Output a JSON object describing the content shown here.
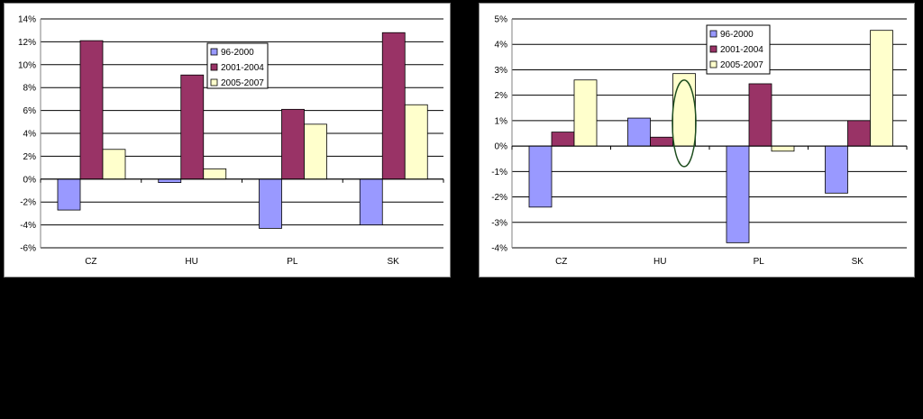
{
  "colors": {
    "s1": "#9999ff",
    "s2": "#993366",
    "s3": "#ffffcc",
    "grid": "#000000",
    "highlight_ellipse": "#1f4e1f"
  },
  "chart_data": [
    {
      "type": "bar",
      "categories": [
        "CZ",
        "HU",
        "PL",
        "SK"
      ],
      "series": [
        {
          "name": "96-2000",
          "values": [
            -2.7,
            -0.3,
            -4.3,
            -4.0
          ]
        },
        {
          "name": "2001-2004",
          "values": [
            12.1,
            9.1,
            6.1,
            12.8
          ]
        },
        {
          "name": "2005-2007",
          "values": [
            2.6,
            0.9,
            4.8,
            6.5
          ]
        }
      ],
      "title": "",
      "xlabel": "",
      "ylabel": "",
      "ylim": [
        -6,
        14
      ],
      "yticks": [
        -6,
        -4,
        -2,
        0,
        2,
        4,
        6,
        8,
        10,
        12,
        14
      ],
      "ytick_labels": [
        "-6%",
        "-4%",
        "-2%",
        "0%",
        "2%",
        "4%",
        "6%",
        "8%",
        "10%",
        "12%",
        "14%"
      ],
      "grid": true,
      "legend_position": "top-center"
    },
    {
      "type": "bar",
      "categories": [
        "CZ",
        "HU",
        "PL",
        "SK"
      ],
      "series": [
        {
          "name": "96-2000",
          "values": [
            -2.4,
            1.1,
            -3.8,
            -1.85
          ]
        },
        {
          "name": "2001-2004",
          "values": [
            0.55,
            0.35,
            2.45,
            1.0
          ]
        },
        {
          "name": "2005-2007",
          "values": [
            2.6,
            2.85,
            -0.2,
            4.55
          ]
        }
      ],
      "title": "",
      "xlabel": "",
      "ylabel": "",
      "ylim": [
        -4,
        5
      ],
      "yticks": [
        -4,
        -3,
        -2,
        -1,
        0,
        1,
        2,
        3,
        4,
        5
      ],
      "ytick_labels": [
        "-4%",
        "-3%",
        "-2%",
        "-1%",
        "0%",
        "1%",
        "2%",
        "3%",
        "4%",
        "5%"
      ],
      "grid": true,
      "legend_position": "top-center",
      "annotation": "ellipse highlighting HU 2005-2007 bar"
    }
  ]
}
